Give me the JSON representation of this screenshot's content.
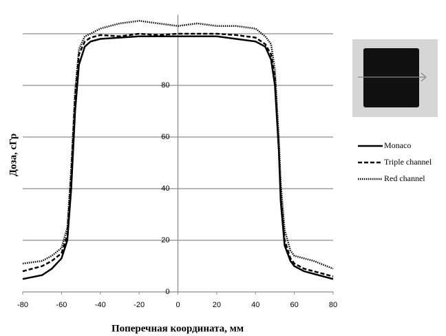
{
  "chart_data": {
    "type": "line",
    "xlabel": "Поперечная координата, мм",
    "ylabel": "Доза, сГр",
    "x": [
      -80,
      -70,
      -65,
      -60,
      -57,
      -55,
      -53,
      -51,
      -48,
      -45,
      -40,
      -30,
      -20,
      -10,
      0,
      10,
      20,
      30,
      40,
      45,
      48,
      50,
      52,
      53,
      55,
      58,
      60,
      65,
      70,
      80
    ],
    "series": [
      {
        "name": "Monaco",
        "color": "#000000",
        "dash": "solid",
        "values": [
          5,
          6.5,
          9,
          13,
          20,
          40,
          70,
          88,
          95,
          97,
          98,
          98.5,
          99,
          99,
          99,
          99,
          99,
          98,
          97,
          95,
          90,
          80,
          55,
          35,
          18,
          12,
          10,
          8,
          7,
          5
        ]
      },
      {
        "name": "Triple channel",
        "color": "#000000",
        "dash": "dashed",
        "values": [
          8,
          10,
          12,
          15,
          22,
          45,
          75,
          92,
          97,
          98.5,
          99.5,
          99,
          100,
          99.5,
          100,
          100,
          100,
          99.5,
          98.5,
          96,
          92,
          83,
          55,
          38,
          20,
          13,
          11,
          9,
          8,
          6
        ]
      },
      {
        "name": "Red channel",
        "color": "#000000",
        "dash": "dotted",
        "values": [
          11,
          12,
          14,
          17,
          25,
          48,
          78,
          94,
          99,
          100,
          102,
          104,
          105,
          104,
          103,
          104,
          103,
          103,
          102,
          99,
          96,
          86,
          60,
          42,
          24,
          16,
          14,
          13,
          12,
          9
        ]
      }
    ],
    "xlim": [
      -80,
      80
    ],
    "xticks": [
      -80,
      -60,
      -40,
      -20,
      0,
      20,
      40,
      60,
      80
    ],
    "ylim": [
      0,
      110
    ],
    "yticks": [
      0,
      20,
      40,
      60,
      80
    ],
    "ygrid": [
      0,
      20,
      40,
      60,
      80,
      100
    ],
    "grid": true,
    "legend": "right"
  }
}
